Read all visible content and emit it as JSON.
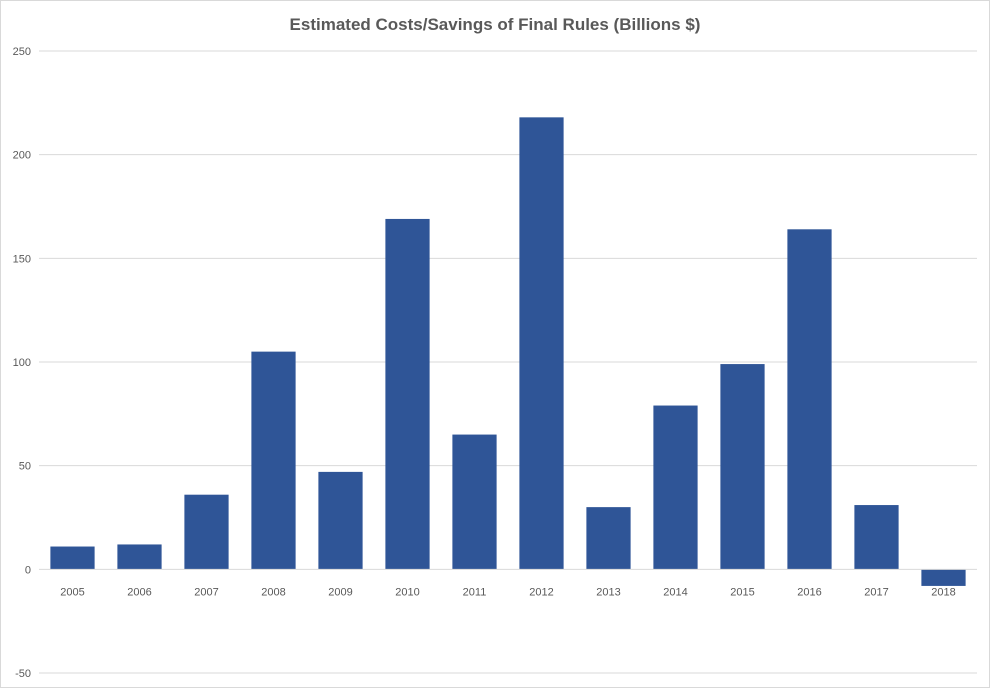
{
  "chart_data": {
    "type": "bar",
    "title": "Estimated Costs/Savings of Final Rules (Billions $)",
    "xlabel": "",
    "ylabel": "",
    "categories": [
      "2005",
      "2006",
      "2007",
      "2008",
      "2009",
      "2010",
      "2011",
      "2012",
      "2013",
      "2014",
      "2015",
      "2016",
      "2017",
      "2018"
    ],
    "values": [
      11,
      12,
      36,
      105,
      47,
      169,
      65,
      218,
      30,
      79,
      99,
      164,
      31,
      -8
    ],
    "ylim": [
      -50,
      250
    ],
    "yticks": [
      -50,
      0,
      50,
      100,
      150,
      200,
      250
    ],
    "grid": true,
    "legend": "none",
    "bar_color": "#2f5597",
    "grid_color": "#d9d9d9",
    "text_color": "#595959"
  }
}
